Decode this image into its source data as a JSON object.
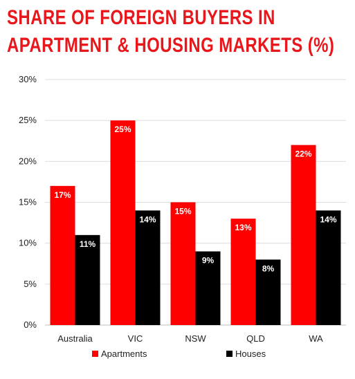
{
  "chart_data": {
    "type": "bar",
    "title_lines": [
      "SHARE OF FOREIGN BUYERS IN",
      "APARTMENT & HOUSING MARKETS (%)"
    ],
    "categories": [
      "Australia",
      "VIC",
      "NSW",
      "QLD",
      "WA"
    ],
    "series": [
      {
        "name": "Apartments",
        "values": [
          17,
          25,
          15,
          13,
          22
        ],
        "labels": [
          "17%",
          "25%",
          "15%",
          "13%",
          "22%"
        ],
        "color": "#ff0000"
      },
      {
        "name": "Houses",
        "values": [
          11,
          14,
          9,
          8,
          14
        ],
        "labels": [
          "11%",
          "14%",
          "9%",
          "8%",
          "14%"
        ],
        "color": "#000000"
      }
    ],
    "ylim": [
      0,
      30
    ],
    "yticks": [
      0,
      5,
      10,
      15,
      20,
      25,
      30
    ],
    "ytick_labels": [
      "0%",
      "5%",
      "10%",
      "15%",
      "20%",
      "25%",
      "30%"
    ],
    "grid": true,
    "legend_position": "bottom"
  }
}
